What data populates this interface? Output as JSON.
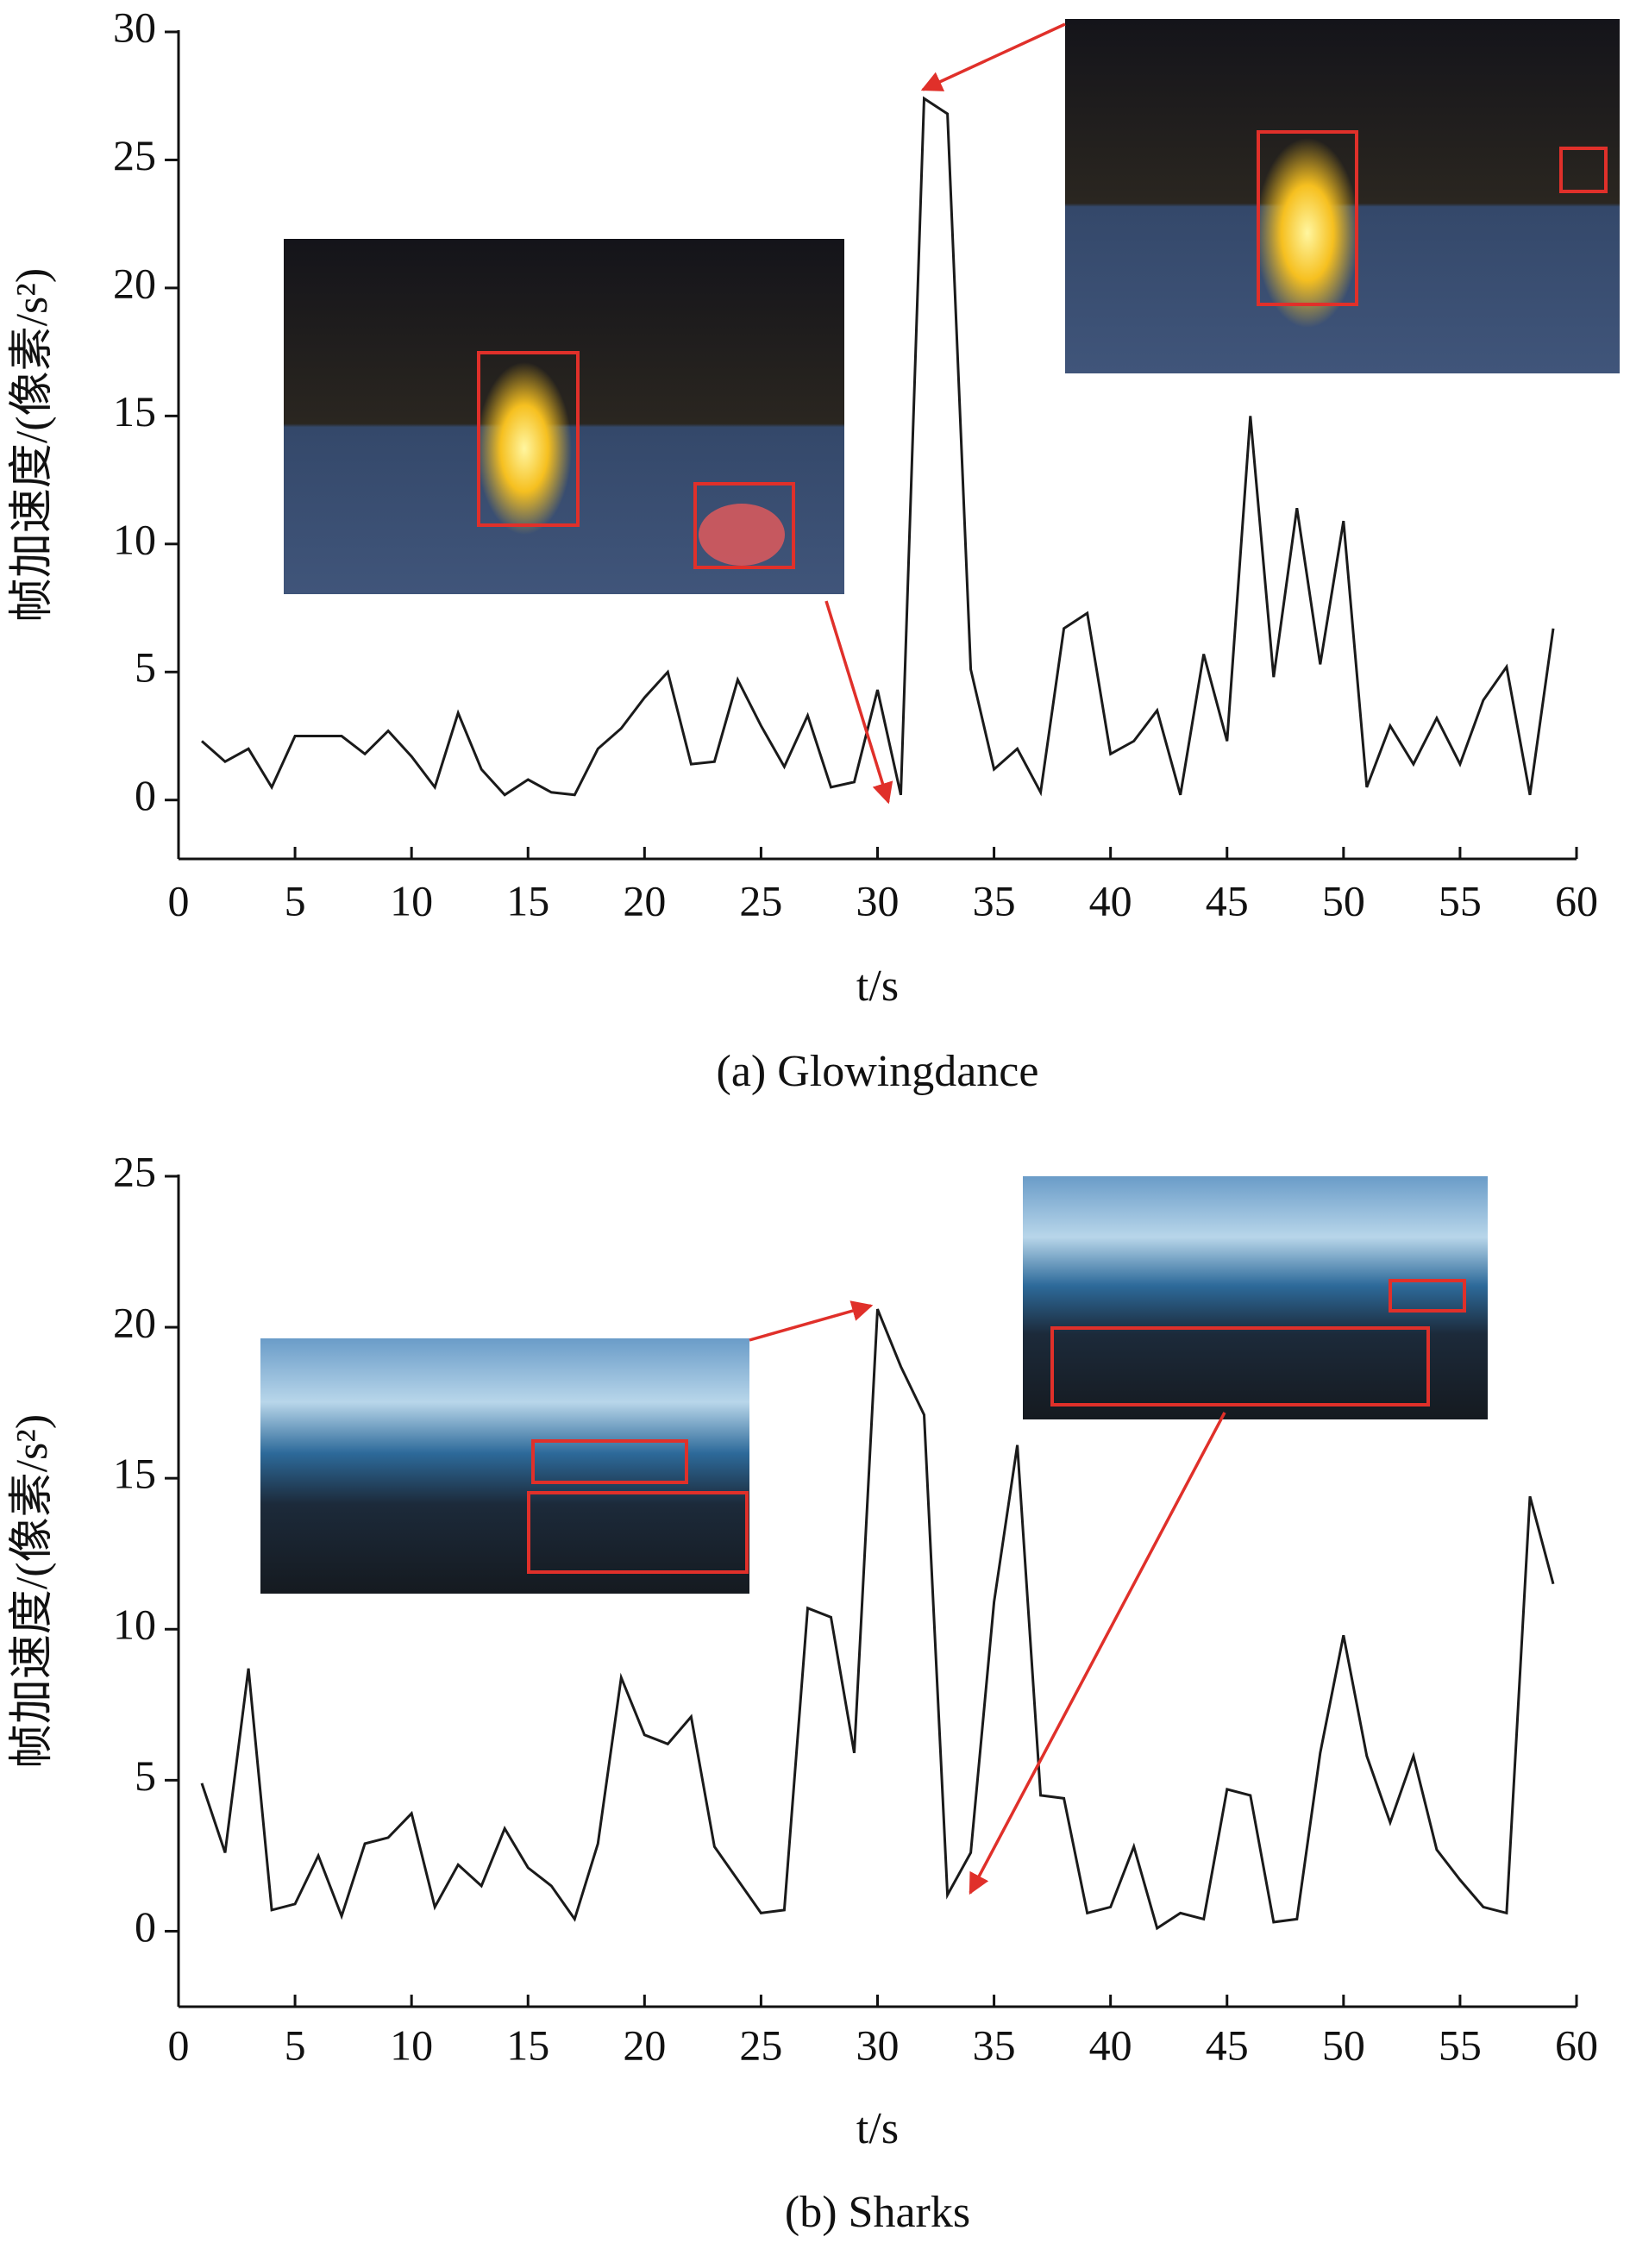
{
  "chart_data": [
    {
      "type": "line",
      "caption": "(a) Glowingdance",
      "xlabel": "t/s",
      "ylabel": "帧加速度/(像素/s²)",
      "x": [
        1,
        2,
        3,
        4,
        5,
        6,
        7,
        8,
        9,
        10,
        11,
        12,
        13,
        14,
        15,
        16,
        17,
        18,
        19,
        20,
        21,
        22,
        23,
        24,
        25,
        26,
        27,
        28,
        29,
        30,
        31,
        32,
        33,
        34,
        35,
        36,
        37,
        38,
        39,
        40,
        41,
        42,
        43,
        44,
        45,
        46,
        47,
        48,
        49,
        50,
        51,
        52,
        53,
        54,
        55,
        56,
        57,
        58,
        59
      ],
      "values": [
        2.3,
        1.5,
        2.0,
        0.5,
        2.5,
        2.5,
        2.5,
        1.8,
        2.7,
        1.7,
        0.5,
        3.4,
        1.2,
        0.2,
        0.8,
        0.3,
        0.2,
        2.0,
        2.8,
        4.0,
        5.0,
        1.4,
        1.5,
        4.7,
        2.9,
        1.3,
        3.3,
        0.5,
        0.7,
        4.3,
        0.2,
        27.4,
        26.8,
        5.1,
        1.2,
        2.0,
        0.3,
        6.7,
        7.3,
        1.8,
        2.3,
        3.5,
        0.2,
        5.7,
        2.3,
        15.0,
        4.8,
        11.4,
        5.3,
        10.9,
        0.5,
        2.9,
        1.4,
        3.2,
        1.4,
        3.9,
        5.2,
        0.2,
        6.7
      ],
      "color": "#1a1a1a",
      "xlim": [
        0,
        60
      ],
      "xticks": [
        0,
        5,
        10,
        15,
        20,
        25,
        30,
        35,
        40,
        45,
        50,
        55,
        60
      ],
      "ylim": [
        -2.3,
        30
      ],
      "yticks": [
        0,
        5,
        10,
        15,
        20,
        25,
        30
      ]
    },
    {
      "type": "line",
      "caption": "(b) Sharks",
      "xlabel": "t/s",
      "ylabel": "帧加速度/(像素/s²)",
      "x": [
        1,
        2,
        3,
        4,
        5,
        6,
        7,
        8,
        9,
        10,
        11,
        12,
        13,
        14,
        15,
        16,
        17,
        18,
        19,
        20,
        21,
        22,
        23,
        24,
        25,
        26,
        27,
        28,
        29,
        30,
        31,
        32,
        33,
        34,
        35,
        36,
        37,
        38,
        39,
        40,
        41,
        42,
        43,
        44,
        45,
        46,
        47,
        48,
        49,
        50,
        51,
        52,
        53,
        54,
        55,
        56,
        57,
        58,
        59
      ],
      "values": [
        4.9,
        2.6,
        8.7,
        0.7,
        0.9,
        2.5,
        0.5,
        2.9,
        3.1,
        3.9,
        0.8,
        2.2,
        1.5,
        3.4,
        2.1,
        1.5,
        0.4,
        2.9,
        8.4,
        6.5,
        6.2,
        7.1,
        2.8,
        1.7,
        0.6,
        0.7,
        10.7,
        10.4,
        5.9,
        20.6,
        18.7,
        17.1,
        1.2,
        2.6,
        10.9,
        16.1,
        4.5,
        4.4,
        0.6,
        0.8,
        2.8,
        0.1,
        0.6,
        0.4,
        4.7,
        4.5,
        0.3,
        0.4,
        5.9,
        9.8,
        5.8,
        3.6,
        5.8,
        2.7,
        1.7,
        0.8,
        0.6,
        14.4,
        11.5
      ],
      "color": "#1a1a1a",
      "xlim": [
        0,
        60
      ],
      "xticks": [
        0,
        5,
        10,
        15,
        20,
        25,
        30,
        35,
        40,
        45,
        50,
        55,
        60
      ],
      "ylim": [
        -2.5,
        25
      ],
      "yticks": [
        0,
        5,
        10,
        15,
        20,
        25
      ]
    }
  ]
}
